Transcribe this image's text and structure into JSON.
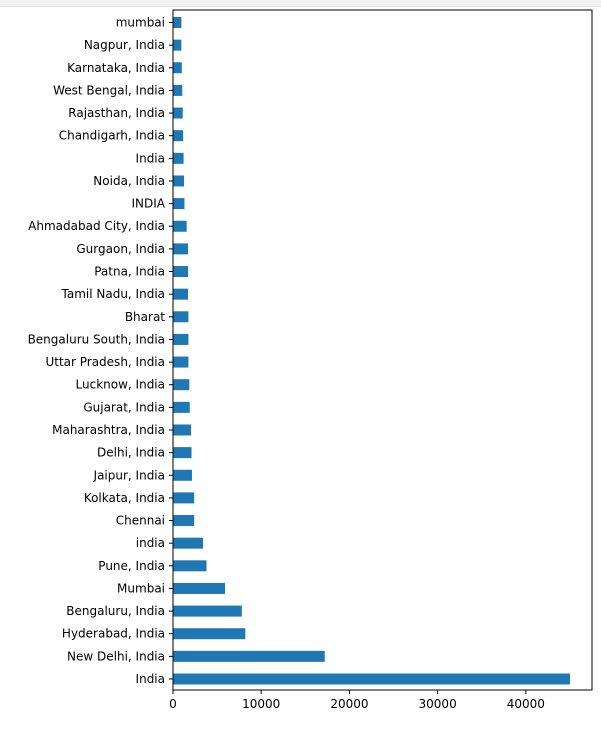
{
  "chart_data": {
    "type": "bar",
    "orientation": "horizontal",
    "title": "",
    "xlabel": "",
    "ylabel": "",
    "bar_color": "#1f77b4",
    "xlim": [
      0,
      47500
    ],
    "xticks": [
      0,
      10000,
      20000,
      30000,
      40000
    ],
    "xtick_labels": [
      "0",
      "10000",
      "20000",
      "30000",
      "40000"
    ],
    "grid": false,
    "legend": "none",
    "categories": [
      "mumbai",
      "Nagpur, India",
      "Karnataka, India",
      "West Bengal, India",
      "Rajasthan, India",
      "Chandigarh, India",
      "India ",
      "Noida, India",
      "INDIA",
      "Ahmadabad City, India",
      "Gurgaon, India",
      "Patna, India",
      "Tamil Nadu, India",
      "Bharat",
      "Bengaluru South, India",
      "Uttar Pradesh, India",
      "Lucknow, India",
      "Gujarat, India",
      "Maharashtra, India",
      "Delhi, India",
      "Jaipur, India",
      "Kolkata, India",
      "Chennai",
      "india",
      "Pune, India",
      "Mumbai",
      "Bengaluru, India",
      "Hyderabad, India",
      "New Delhi, India",
      "India"
    ],
    "values": [
      950,
      950,
      1000,
      1050,
      1100,
      1150,
      1200,
      1250,
      1300,
      1550,
      1700,
      1700,
      1700,
      1750,
      1750,
      1750,
      1850,
      1900,
      2050,
      2100,
      2150,
      2400,
      2400,
      3400,
      3800,
      5900,
      7800,
      8200,
      17200,
      45000
    ]
  }
}
